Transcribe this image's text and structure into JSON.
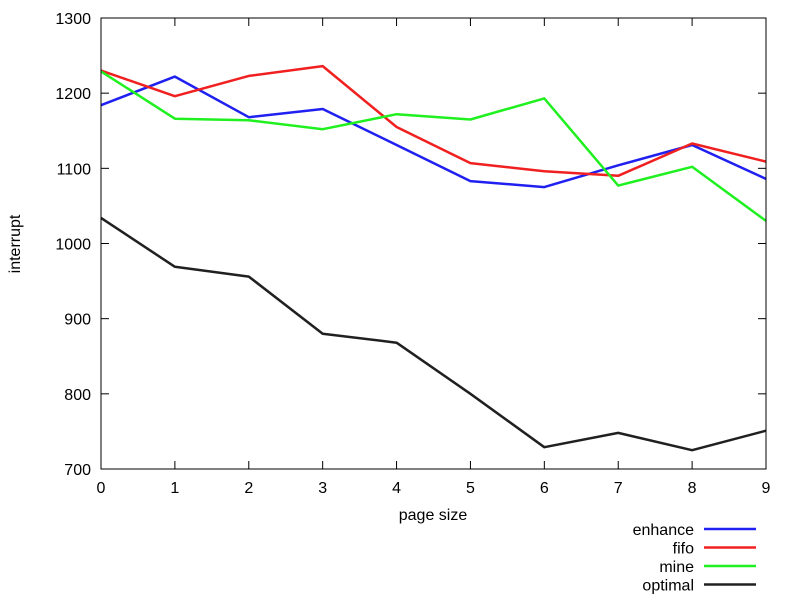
{
  "chart_data": {
    "type": "line",
    "x": [
      0,
      1,
      2,
      3,
      4,
      5,
      6,
      7,
      8,
      9
    ],
    "xlabel": "page size",
    "ylabel": "interrupt",
    "xlim": [
      0,
      9
    ],
    "ylim": [
      700,
      1300
    ],
    "xticks": [
      "0",
      "1",
      "2",
      "3",
      "4",
      "5",
      "6",
      "7",
      "8",
      "9"
    ],
    "yticks": [
      "700",
      "800",
      "900",
      "1000",
      "1100",
      "1200",
      "1300"
    ],
    "grid": false,
    "legend_position": "bottom-right, outside plot",
    "series": [
      {
        "name": "enhance",
        "color": "#2020f0",
        "values": [
          1184,
          1222,
          1168,
          1179,
          1131,
          1083,
          1075,
          1104,
          1131,
          1086
        ]
      },
      {
        "name": "fifo",
        "color": "#f02020",
        "values": [
          1230,
          1196,
          1223,
          1236,
          1155,
          1107,
          1096,
          1090,
          1133,
          1109
        ]
      },
      {
        "name": "mine",
        "color": "#20f020",
        "values": [
          1229,
          1166,
          1164,
          1152,
          1172,
          1165,
          1193,
          1077,
          1102,
          1030
        ]
      },
      {
        "name": "optimal",
        "color": "#202020",
        "values": [
          1034,
          969,
          956,
          880,
          868,
          800,
          729,
          748,
          725,
          751
        ]
      }
    ]
  }
}
